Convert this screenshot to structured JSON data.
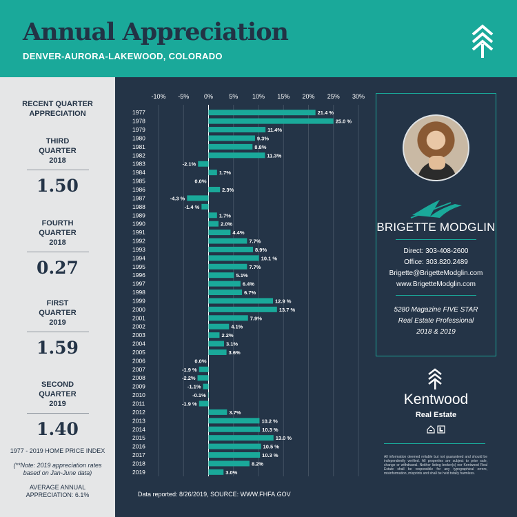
{
  "header": {
    "title": "Annual Appreciation",
    "subtitle": "DENVER-AURORA-LAKEWOOD, COLORADO",
    "logo_icon": "chevron-tree-icon"
  },
  "sidebar": {
    "heading": "RECENT QUARTER APPRECIATION",
    "quarters": [
      {
        "label": "THIRD QUARTER 2018",
        "value": "1.50"
      },
      {
        "label": "FOURTH QUARTER 2018",
        "value": "0.27"
      },
      {
        "label": "FIRST QUARTER 2019",
        "value": "1.59"
      },
      {
        "label": "SECOND QUARTER 2019",
        "value": "1.40"
      }
    ],
    "index_label": "1977 - 2019 HOME PRICE INDEX",
    "note": "(**Note: 2019 appreciation rates based on Jan-June data)",
    "average": "AVERAGE ANNUAL APPRECIATION: 6.1%"
  },
  "chart_data": {
    "type": "bar",
    "orientation": "horizontal",
    "categories": [
      "1977",
      "1978",
      "1979",
      "1980",
      "1981",
      "1982",
      "1983",
      "1984",
      "1985",
      "1986",
      "1987",
      "1988",
      "1989",
      "1990",
      "1991",
      "1992",
      "1993",
      "1994",
      "1995",
      "1996",
      "1997",
      "1998",
      "1999",
      "2000",
      "2001",
      "2002",
      "2003",
      "2004",
      "2005",
      "2006",
      "2007",
      "2008",
      "2009",
      "2010",
      "2011",
      "2012",
      "2013",
      "2014",
      "2015",
      "2016",
      "2017",
      "2018",
      "2019"
    ],
    "values": [
      21.4,
      25.0,
      11.4,
      9.3,
      8.8,
      11.3,
      -2.1,
      1.7,
      0.0,
      2.3,
      -4.3,
      -1.4,
      1.7,
      2.0,
      4.4,
      7.7,
      8.9,
      10.1,
      7.7,
      5.1,
      6.4,
      6.7,
      12.9,
      13.7,
      7.9,
      4.1,
      2.2,
      3.1,
      3.6,
      0.0,
      -1.9,
      -2.2,
      -1.1,
      -0.1,
      -1.9,
      3.7,
      10.2,
      10.3,
      13.0,
      10.5,
      10.3,
      8.2,
      3.0
    ],
    "value_labels": [
      "21.4 %",
      "25.0 %",
      "11.4%",
      "9.3%",
      "8.8%",
      "11.3%",
      "-2.1%",
      "1.7%",
      "0.0%",
      "2.3%",
      "-4.3 %",
      "-1.4 %",
      "1.7%",
      "2.0%",
      "4.4%",
      "7.7%",
      "8.9%",
      "10.1 %",
      "7.7%",
      "5.1%",
      "6.4%",
      "6.7%",
      "12.9 %",
      "13.7 %",
      "7.9%",
      "4.1%",
      "2.2%",
      "3.1%",
      "3.6%",
      "0.0%",
      "-1.9 %",
      "-2.2%",
      "-1.1%",
      "-0.1%",
      "-1.9 %",
      "3.7%",
      "10.2 %",
      "10.3 %",
      "13.0 %",
      "10.5 %",
      "10.3 %",
      "8.2%",
      "3.0%"
    ],
    "xticks": [
      -10,
      -5,
      0,
      5,
      10,
      15,
      20,
      25,
      30
    ],
    "xtick_labels": [
      "-10%",
      "-5%",
      "0%",
      "5%",
      "10%",
      "15%",
      "20%",
      "25%",
      "30%"
    ],
    "xlim": [
      -10,
      30
    ],
    "grid": true,
    "bar_color": "#1aa99a"
  },
  "source": "Data reported: 8/26/2019, SOURCE: WWW.FHFA.GOV",
  "agent": {
    "photo_icon": "agent-photo",
    "name": "BRIGETTE MODGLIN",
    "direct": "Direct: 303-408-2600",
    "office": "Office: 303.820.2489",
    "email": "Brigette@BrigetteModglin.com",
    "website": "www.BrigetteModglin.com",
    "award_lines": [
      "5280 Magazine FIVE STAR",
      "Real Estate Professional",
      "2018 & 2019"
    ]
  },
  "brand": {
    "name": "Kentwood",
    "sub": "Real Estate",
    "disclaimer": "All information deemed reliable but not guaranteed and should be independently verified. All properties are subject to prior sale, change or withdrawal. Neither listing broker(s) nor Kentwood Real Estate shall be responsible for any typographical errors, misinformation, misprints and shall be held totally harmless."
  }
}
